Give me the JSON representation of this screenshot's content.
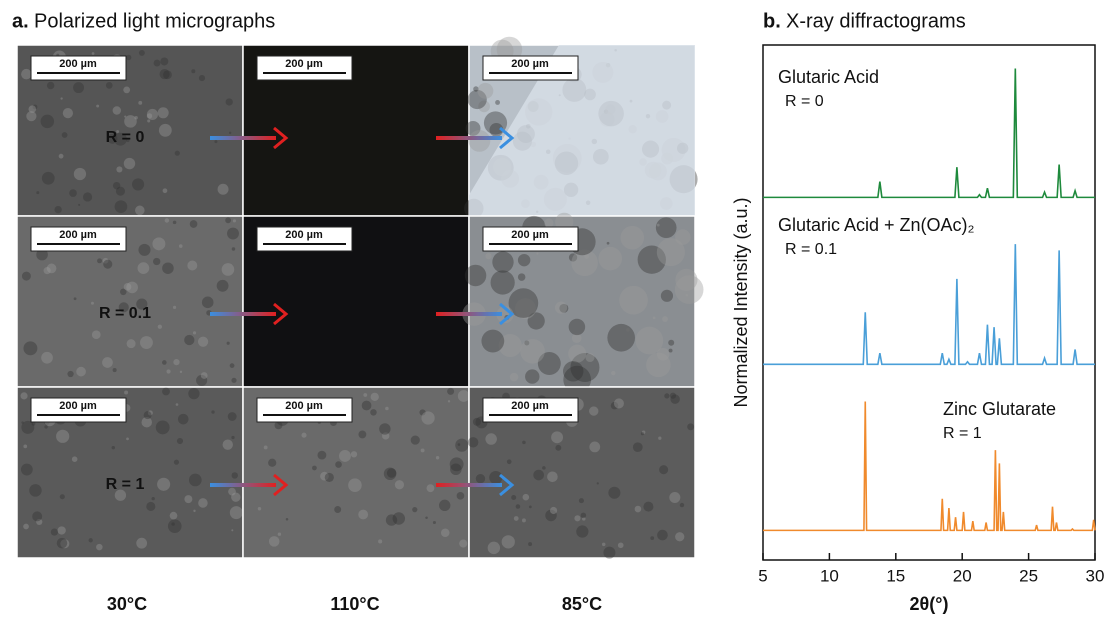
{
  "panel_a": {
    "label": "a.",
    "title": "Polarized light micrographs",
    "scale_bar": "200 µm",
    "rows": [
      "R = 0",
      "R = 0.1",
      "R = 1"
    ],
    "columns": [
      "30°C",
      "110°C",
      "85°C"
    ]
  },
  "panel_b": {
    "label": "b."
  },
  "chart_data": [
    {
      "type": "line",
      "title": "X-ray diffractograms",
      "ylabel": "Normalized Intensity (a.u.)",
      "annotation": "R = 0",
      "xlim": [
        5,
        30
      ],
      "ylim": [
        0,
        1.05
      ],
      "series": [
        {
          "name": "Glutaric Acid",
          "color": "#1e8a3c",
          "x": [
            5,
            13.65,
            13.8,
            13.95,
            19.45,
            19.6,
            19.75,
            21.15,
            21.3,
            21.45,
            21.75,
            21.9,
            22.05,
            23.85,
            24,
            24.15,
            26.05,
            26.2,
            26.35,
            27.15,
            27.3,
            27.45,
            28.35,
            28.5,
            28.65,
            30
          ],
          "values": [
            0.02,
            0.02,
            0.14,
            0.02,
            0.02,
            0.25,
            0.02,
            0.02,
            0.04,
            0.02,
            0.02,
            0.09,
            0.02,
            0.02,
            1,
            0.02,
            0.02,
            0.06,
            0.02,
            0.02,
            0.27,
            0.02,
            0.02,
            0.07,
            0.02,
            0.02
          ]
        }
      ]
    },
    {
      "type": "line",
      "annotation": "R = 0.1",
      "xlim": [
        5,
        30
      ],
      "ylim": [
        0,
        1.05
      ],
      "series": [
        {
          "name": "Glutaric Acid + Zn(OAc)₂",
          "color": "#4a9fd8",
          "x": [
            5,
            12.55,
            12.7,
            12.85,
            13.65,
            13.8,
            13.95,
            18.35,
            18.5,
            18.65,
            18.85,
            19,
            19.15,
            19.45,
            19.6,
            19.75,
            20.25,
            20.4,
            20.55,
            21.15,
            21.3,
            21.45,
            21.75,
            21.9,
            22.05,
            22.25,
            22.4,
            22.55,
            22.65,
            22.8,
            22.95,
            23.85,
            24,
            24.15,
            26.05,
            26.2,
            26.35,
            27.15,
            27.3,
            27.45,
            28.35,
            28.5,
            28.65,
            30
          ],
          "values": [
            0.03,
            0.03,
            0.45,
            0.03,
            0.03,
            0.12,
            0.03,
            0.03,
            0.12,
            0.03,
            0.03,
            0.07,
            0.03,
            0.03,
            0.72,
            0.03,
            0.03,
            0.05,
            0.03,
            0.03,
            0.12,
            0.03,
            0.03,
            0.35,
            0.03,
            0.03,
            0.33,
            0.03,
            0.03,
            0.24,
            0.03,
            0.03,
            1,
            0.03,
            0.03,
            0.08,
            0.03,
            0.03,
            0.95,
            0.03,
            0.03,
            0.15,
            0.03,
            0.03
          ]
        }
      ]
    },
    {
      "type": "line",
      "annotation": "R = 1",
      "xlabel": "2θ(°)",
      "xlim": [
        5,
        30
      ],
      "ylim": [
        0,
        1.05
      ],
      "xticks": [
        5,
        10,
        15,
        20,
        25,
        30
      ],
      "series": [
        {
          "name": "Zinc Glutarate",
          "color": "#f08a2c",
          "x": [
            5,
            12.6,
            12.7,
            12.8,
            18.4,
            18.5,
            18.6,
            18.9,
            19,
            19.1,
            19.4,
            19.5,
            19.6,
            20,
            20.1,
            20.2,
            20.7,
            20.8,
            20.9,
            21.7,
            21.8,
            21.9,
            22.4,
            22.5,
            22.6,
            22.7,
            22.8,
            22.9,
            23,
            23.1,
            23.2,
            25.5,
            25.6,
            25.7,
            26.7,
            26.8,
            26.9,
            27,
            27.1,
            27.2,
            28.2,
            28.3,
            28.4,
            29.8,
            29.9,
            30
          ],
          "values": [
            0.02,
            0.02,
            1,
            0.02,
            0.02,
            0.26,
            0.02,
            0.02,
            0.19,
            0.02,
            0.02,
            0.12,
            0.02,
            0.02,
            0.16,
            0.02,
            0.02,
            0.09,
            0.02,
            0.02,
            0.08,
            0.02,
            0.02,
            0.63,
            0.02,
            0.02,
            0.53,
            0.02,
            0.02,
            0.16,
            0.02,
            0.02,
            0.06,
            0.02,
            0.02,
            0.2,
            0.02,
            0.02,
            0.08,
            0.02,
            0.02,
            0.03,
            0.02,
            0.02,
            0.1,
            0.02
          ]
        }
      ]
    }
  ]
}
